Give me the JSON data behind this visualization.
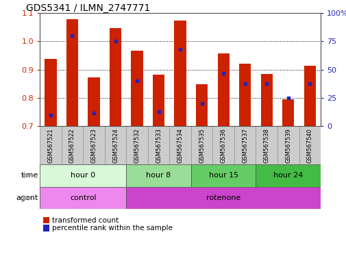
{
  "title": "GDS5341 / ILMN_2747771",
  "samples": [
    "GSM567521",
    "GSM567522",
    "GSM567523",
    "GSM567524",
    "GSM567532",
    "GSM567533",
    "GSM567534",
    "GSM567535",
    "GSM567536",
    "GSM567537",
    "GSM567538",
    "GSM567539",
    "GSM567540"
  ],
  "red_values": [
    0.938,
    1.078,
    0.872,
    1.048,
    0.968,
    0.882,
    1.075,
    0.848,
    0.957,
    0.922,
    0.884,
    0.795,
    0.915
  ],
  "blue_values_pct": [
    10,
    80,
    12,
    75,
    40,
    13,
    68,
    20,
    47,
    38,
    38,
    25,
    38
  ],
  "ylim_left": [
    0.7,
    1.1
  ],
  "ylim_right": [
    0,
    100
  ],
  "yticks_left": [
    0.7,
    0.8,
    0.9,
    1.0,
    1.1
  ],
  "yticks_right": [
    0,
    25,
    50,
    75,
    100
  ],
  "ytick_labels_right": [
    "0",
    "25",
    "50",
    "75",
    "100%"
  ],
  "bar_color": "#cc2200",
  "dot_color": "#2222bb",
  "base_value": 0.7,
  "time_groups": [
    {
      "label": "hour 0",
      "start": 0,
      "end": 4,
      "color": "#d8f8d8"
    },
    {
      "label": "hour 8",
      "start": 4,
      "end": 7,
      "color": "#99dd99"
    },
    {
      "label": "hour 15",
      "start": 7,
      "end": 10,
      "color": "#66cc66"
    },
    {
      "label": "hour 24",
      "start": 10,
      "end": 13,
      "color": "#44bb44"
    }
  ],
  "agent_groups": [
    {
      "label": "control",
      "start": 0,
      "end": 4,
      "color": "#ee88ee"
    },
    {
      "label": "rotenone",
      "start": 4,
      "end": 13,
      "color": "#cc44cc"
    }
  ],
  "legend_red_label": "transformed count",
  "legend_blue_label": "percentile rank within the sample",
  "time_label": "time",
  "agent_label": "agent",
  "tick_label_color_left": "#cc2200",
  "tick_label_color_right": "#2222bb",
  "box_color": "#cccccc",
  "box_edge_color": "#999999"
}
